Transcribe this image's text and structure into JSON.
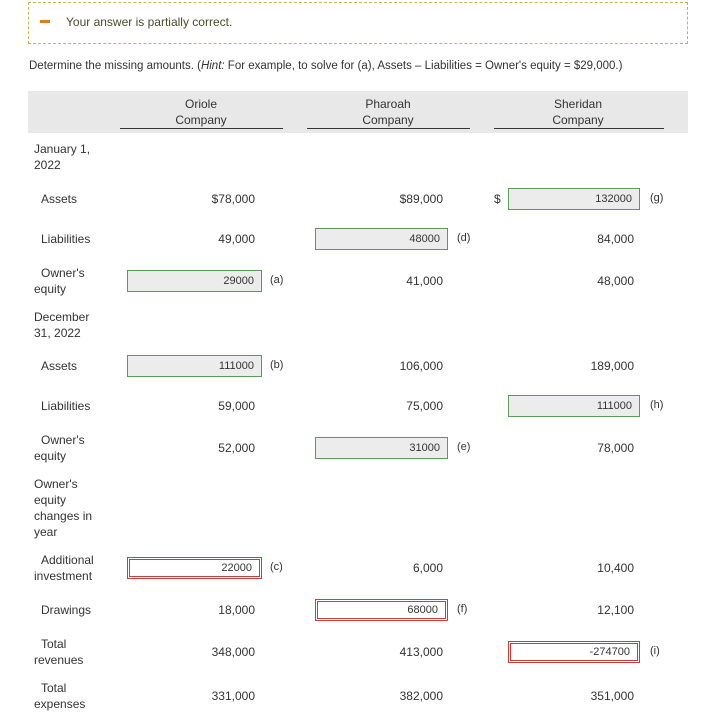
{
  "banner": "Your answer is partially correct.",
  "instructions": {
    "text": "Determine the missing amounts. (",
    "hint_label": "Hint:",
    "hint": " For example, to solve for (a), Assets – Liabilities = Owner's equity = $29,000.)"
  },
  "table": {
    "columns": [
      "Oriole Company",
      "Pharoah Company",
      "Sheridan Company"
    ],
    "rows": [
      {
        "section": "January 1, 2022"
      },
      {
        "label": "Assets",
        "cells": [
          "$78,000",
          "$89,000",
          {
            "prefix": "$",
            "value": "132000",
            "tag": "(g)",
            "status": "correct"
          }
        ]
      },
      {
        "label": "Liabilities",
        "cells": [
          "49,000",
          {
            "value": "48000",
            "tag": "(d)",
            "status": "correct"
          },
          "84,000"
        ]
      },
      {
        "label": "Owner's equity",
        "cells": [
          {
            "value": "29000",
            "tag": "(a)",
            "status": "correct"
          },
          "41,000",
          "48,000"
        ]
      },
      {
        "section": "December 31, 2022"
      },
      {
        "label": "Assets",
        "cells": [
          {
            "value": "111000",
            "tag": "(b)",
            "status": "correct"
          },
          "106,000",
          "189,000"
        ]
      },
      {
        "label": "Liabilities",
        "cells": [
          "59,000",
          "75,000",
          {
            "value": "111000",
            "tag": "(h)",
            "status": "correct"
          }
        ]
      },
      {
        "label": "Owner's equity",
        "cells": [
          "52,000",
          {
            "value": "31000",
            "tag": "(e)",
            "status": "correct"
          },
          "78,000"
        ]
      },
      {
        "section": "Owner's equity changes in year"
      },
      {
        "label": "Additional investment",
        "cells": [
          {
            "value": "22000",
            "tag": "(c)",
            "status": "incorrect"
          },
          "6,000",
          "10,400"
        ]
      },
      {
        "label": "Drawings",
        "cells": [
          "18,000",
          {
            "value": "68000",
            "tag": "(f)",
            "status": "incorrect"
          },
          "12,100"
        ]
      },
      {
        "label": "Total revenues",
        "cells": [
          "348,000",
          "413,000",
          {
            "value": "-274700",
            "tag": "(i)",
            "status": "incorrect"
          }
        ]
      },
      {
        "label": "Total expenses",
        "cells": [
          "331,000",
          "382,000",
          "351,000"
        ]
      }
    ]
  }
}
